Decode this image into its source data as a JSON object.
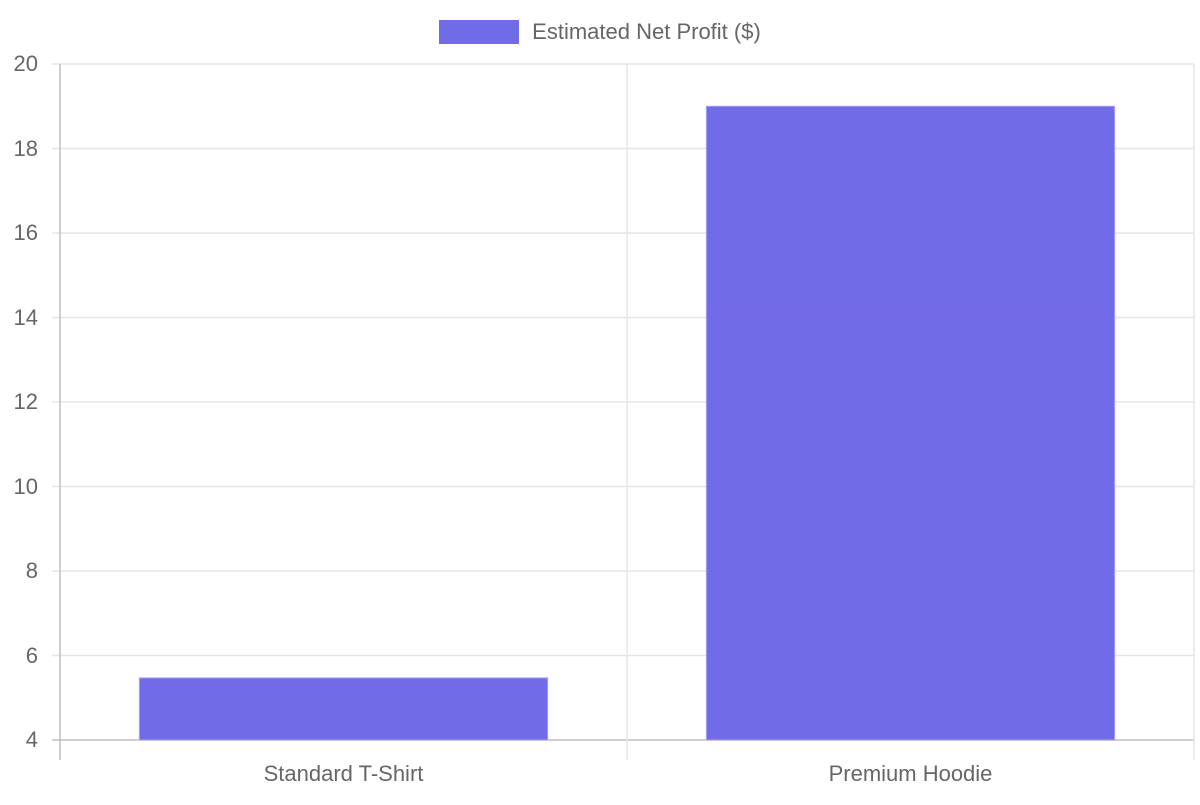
{
  "chart_data": {
    "type": "bar",
    "title": "",
    "xlabel": "",
    "ylabel": "",
    "categories": [
      "Standard T-Shirt",
      "Premium Hoodie"
    ],
    "series": [
      {
        "name": "Estimated Net Profit ($)",
        "values": [
          5.47,
          19
        ],
        "color": "#6c63e8"
      }
    ],
    "ylim": [
      4,
      20
    ],
    "yticks": [
      4,
      6,
      8,
      10,
      12,
      14,
      16,
      18,
      20
    ],
    "grid": true,
    "legend_position": "top"
  },
  "legend": {
    "label": "Estimated Net Profit ($)",
    "color": "#6c63e8"
  },
  "colors": {
    "bar_fill": "rgba(99,91,230,0.9)",
    "bar_border": "#a9a4f2",
    "grid": "#e5e5e5",
    "axis": "#bfbfbf",
    "text": "#666666"
  }
}
